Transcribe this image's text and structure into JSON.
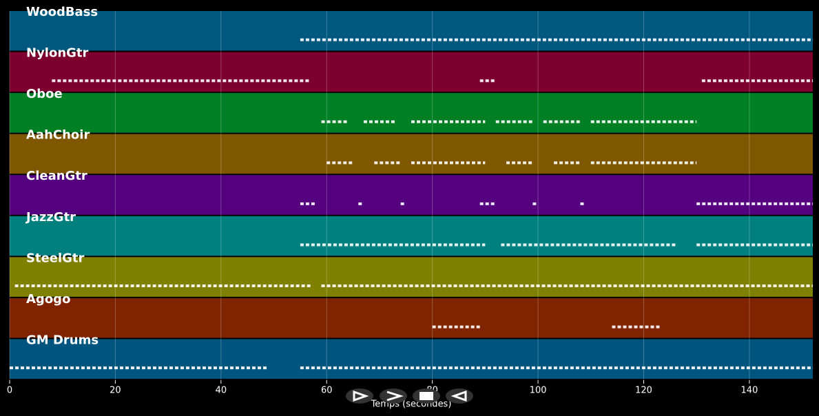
{
  "chart_data": {
    "type": "piano-roll",
    "xlabel": "Temps (secondes)",
    "xlim": [
      0,
      152
    ],
    "xticks": [
      0,
      20,
      40,
      60,
      80,
      100,
      120,
      140
    ],
    "grid": true,
    "series": [
      {
        "name": "WoodBass",
        "color": "#00587f",
        "segments": [
          [
            55,
            152
          ]
        ]
      },
      {
        "name": "NylonGtr",
        "color": "#7d002f",
        "segments": [
          [
            8,
            57
          ],
          [
            89,
            92
          ],
          [
            131,
            152
          ]
        ]
      },
      {
        "name": "Oboe",
        "color": "#007f24",
        "segments": [
          [
            59,
            64
          ],
          [
            67,
            73
          ],
          [
            76,
            90
          ],
          [
            92,
            99
          ],
          [
            101,
            108
          ],
          [
            110,
            130
          ]
        ]
      },
      {
        "name": "AahChoir",
        "color": "#7f5700",
        "segments": [
          [
            60,
            65
          ],
          [
            69,
            74
          ],
          [
            76,
            90
          ],
          [
            94,
            99
          ],
          [
            103,
            108
          ],
          [
            110,
            130
          ]
        ]
      },
      {
        "name": "CleanGtr",
        "color": "#55007f",
        "segments": [
          [
            55,
            58
          ],
          [
            66,
            67
          ],
          [
            74,
            75
          ],
          [
            89,
            92
          ],
          [
            99,
            100
          ],
          [
            108,
            109
          ],
          [
            130,
            152
          ]
        ]
      },
      {
        "name": "JazzGtr",
        "color": "#007f7f",
        "segments": [
          [
            55,
            90
          ],
          [
            93,
            126
          ],
          [
            130,
            152
          ]
        ]
      },
      {
        "name": "SteelGtr",
        "color": "#7f7f00",
        "segments": [
          [
            1,
            57
          ],
          [
            59,
            152
          ]
        ]
      },
      {
        "name": "Agogo",
        "color": "#7f2300",
        "segments": [
          [
            80,
            89
          ],
          [
            114,
            123
          ]
        ]
      },
      {
        "name": "GM Drums",
        "color": "#00557f",
        "segments": [
          [
            0,
            49
          ],
          [
            55,
            152
          ]
        ]
      }
    ]
  }
}
